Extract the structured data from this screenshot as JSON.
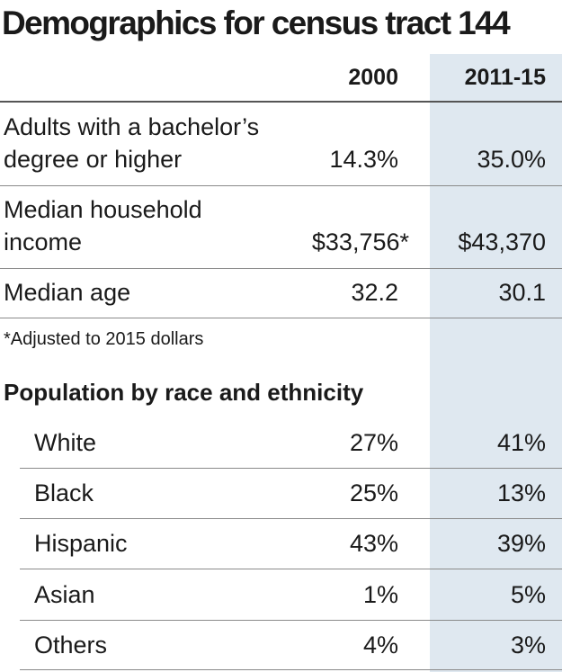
{
  "chart_data": {
    "type": "table",
    "title": "Demographics for census tract 144",
    "columns": [
      "2000",
      "2011-15"
    ],
    "rows": [
      {
        "label": "Adults with a bachelor’s degree or higher",
        "label_lines": [
          "Adults with a bachelor’s",
          "degree or higher"
        ],
        "values": [
          "14.3%",
          "35.0%"
        ]
      },
      {
        "label": "Median household income",
        "label_lines": [
          "Median household",
          "income"
        ],
        "values": [
          "$33,756*",
          "$43,370"
        ]
      },
      {
        "label": "Median age",
        "label_lines": [
          "Median age"
        ],
        "values": [
          "32.2",
          "30.1"
        ]
      }
    ],
    "footnote": "*Adjusted to 2015 dollars",
    "section": {
      "title": "Population by race and ethnicity",
      "rows": [
        {
          "label": "White",
          "values": [
            "27%",
            "41%"
          ]
        },
        {
          "label": "Black",
          "values": [
            "25%",
            "13%"
          ]
        },
        {
          "label": "Hispanic",
          "values": [
            "43%",
            "39%"
          ]
        },
        {
          "label": "Asian",
          "values": [
            "1%",
            "5%"
          ]
        },
        {
          "label": "Others",
          "values": [
            "4%",
            "3%"
          ]
        }
      ]
    },
    "highlight_color": "#dfe8f0"
  }
}
